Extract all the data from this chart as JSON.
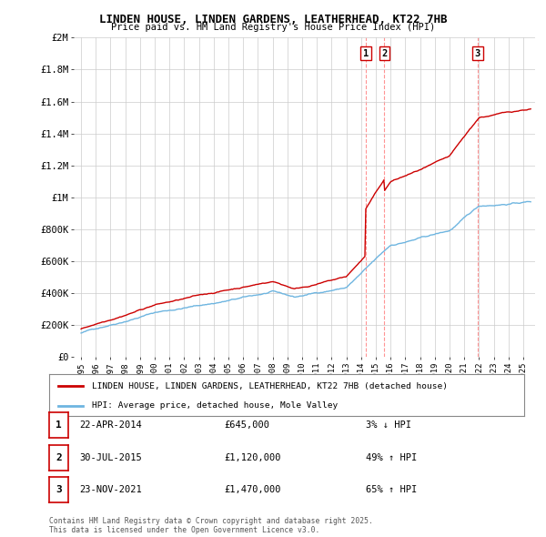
{
  "title": "LINDEN HOUSE, LINDEN GARDENS, LEATHERHEAD, KT22 7HB",
  "subtitle": "Price paid vs. HM Land Registry's House Price Index (HPI)",
  "legend_line1": "LINDEN HOUSE, LINDEN GARDENS, LEATHERHEAD, KT22 7HB (detached house)",
  "legend_line2": "HPI: Average price, detached house, Mole Valley",
  "transactions": [
    {
      "num": 1,
      "date": "22-APR-2014",
      "price": "£645,000",
      "pct": "3% ↓ HPI",
      "x_year": 2014.31
    },
    {
      "num": 2,
      "date": "30-JUL-2015",
      "price": "£1,120,000",
      "pct": "49% ↑ HPI",
      "x_year": 2015.58
    },
    {
      "num": 3,
      "date": "23-NOV-2021",
      "price": "£1,470,000",
      "pct": "65% ↑ HPI",
      "x_year": 2021.9
    }
  ],
  "copyright": "Contains HM Land Registry data © Crown copyright and database right 2025.\nThis data is licensed under the Open Government Licence v3.0.",
  "hpi_color": "#6eb5e0",
  "price_color": "#cc0000",
  "vline_color": "#ff8888",
  "background_color": "#ffffff",
  "grid_color": "#cccccc",
  "xlim": [
    1994.5,
    2025.8
  ],
  "ylim": [
    0,
    2000000
  ],
  "yticks": [
    0,
    200000,
    400000,
    600000,
    800000,
    1000000,
    1200000,
    1400000,
    1600000,
    1800000,
    2000000
  ],
  "ytick_labels": [
    "£0",
    "£200K",
    "£400K",
    "£600K",
    "£800K",
    "£1M",
    "£1.2M",
    "£1.4M",
    "£1.6M",
    "£1.8M",
    "£2M"
  ]
}
